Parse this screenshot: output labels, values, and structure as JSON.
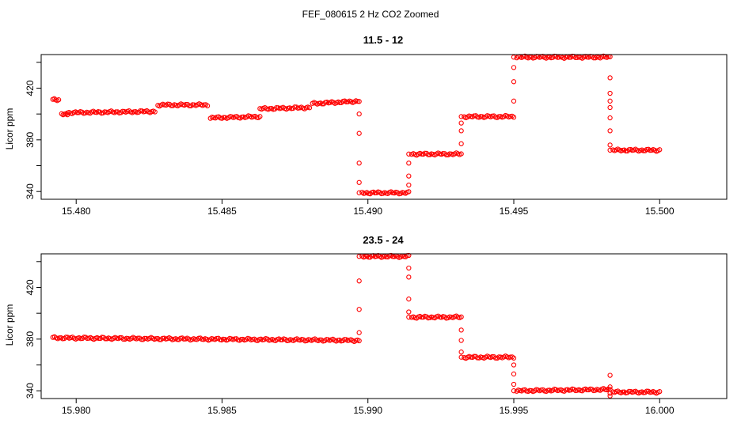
{
  "figure": {
    "title": "FEF_080615  2 Hz CO2 Zoomed"
  },
  "chart_data": [
    {
      "type": "scatter",
      "title": "11.5 - 12",
      "xlabel": "",
      "ylabel": "Licor ppm",
      "xlim": [
        15.4788,
        15.5023
      ],
      "ylim": [
        334,
        446
      ],
      "xticks": [
        15.48,
        15.485,
        15.49,
        15.495,
        15.5
      ],
      "xtick_labels": [
        "15.480",
        "15.485",
        "15.490",
        "15.495",
        "15.500"
      ],
      "yticks": [
        340,
        380,
        420
      ],
      "ytick_labels": [
        "340",
        "380",
        "420"
      ],
      "ytick_minor": [
        360,
        400,
        440
      ],
      "grid": false,
      "marker": "open-circle",
      "color": "#ff0000",
      "segments": [
        {
          "x": [
            15.4792,
            15.4794
          ],
          "y": [
            411,
            411
          ]
        },
        {
          "x": [
            15.4795,
            15.4797
          ],
          "y": [
            400,
            400
          ]
        },
        {
          "x": [
            15.4797,
            15.4827
          ],
          "y": [
            401,
            402
          ]
        },
        {
          "x": [
            15.4828,
            15.4845
          ],
          "y": [
            407,
            407
          ]
        },
        {
          "x": [
            15.4846,
            15.4863
          ],
          "y": [
            397,
            398
          ]
        },
        {
          "x": [
            15.4863,
            15.488
          ],
          "y": [
            404,
            405
          ]
        },
        {
          "x": [
            15.4881,
            15.4897
          ],
          "y": [
            408,
            410
          ]
        },
        {
          "x": [
            15.4898,
            15.4914
          ],
          "y": [
            339,
            339
          ]
        },
        {
          "x": [
            15.4915,
            15.4932
          ],
          "y": [
            369,
            369
          ]
        },
        {
          "x": [
            15.4933,
            15.495
          ],
          "y": [
            398,
            398
          ]
        },
        {
          "x": [
            15.4951,
            15.4983
          ],
          "y": [
            444,
            444
          ]
        },
        {
          "x": [
            15.4984,
            15.5
          ],
          "y": [
            372,
            372
          ]
        }
      ],
      "transitions": [
        {
          "x": 15.4897,
          "y": [
            400,
            385,
            362,
            347,
            339
          ]
        },
        {
          "x": 15.4914,
          "y": [
            345,
            352,
            362,
            369
          ]
        },
        {
          "x": 15.4932,
          "y": [
            377,
            387,
            393,
            398
          ]
        },
        {
          "x": 15.495,
          "y": [
            410,
            425,
            436,
            444
          ]
        },
        {
          "x": 15.4983,
          "y": [
            428,
            416,
            410,
            405,
            397,
            387,
            376,
            372
          ]
        }
      ]
    },
    {
      "type": "scatter",
      "title": "23.5 - 24",
      "xlabel": "",
      "ylabel": "Licor ppm",
      "xlim": [
        15.9788,
        16.0023
      ],
      "ylim": [
        334,
        446
      ],
      "xticks": [
        15.98,
        15.985,
        15.99,
        15.995,
        16.0
      ],
      "xtick_labels": [
        "15.980",
        "15.985",
        "15.990",
        "15.995",
        "16.000"
      ],
      "yticks": [
        340,
        380,
        420
      ],
      "ytick_labels": [
        "340",
        "380",
        "420"
      ],
      "ytick_minor": [
        360,
        400,
        440
      ],
      "grid": false,
      "marker": "open-circle",
      "color": "#ff0000",
      "segments": [
        {
          "x": [
            15.9792,
            15.9897
          ],
          "y": [
            381,
            379
          ]
        },
        {
          "x": [
            15.9898,
            15.9914
          ],
          "y": [
            444,
            444
          ]
        },
        {
          "x": [
            15.9915,
            15.9932
          ],
          "y": [
            397,
            397
          ]
        },
        {
          "x": [
            15.9933,
            15.995
          ],
          "y": [
            366,
            366
          ]
        },
        {
          "x": [
            15.9951,
            15.9983
          ],
          "y": [
            340,
            341
          ]
        },
        {
          "x": [
            15.9984,
            16.0
          ],
          "y": [
            339,
            339
          ]
        }
      ],
      "transitions": [
        {
          "x": 15.9897,
          "y": [
            385,
            403,
            425,
            444
          ]
        },
        {
          "x": 15.9914,
          "y": [
            435,
            428,
            411,
            401,
            397
          ]
        },
        {
          "x": 15.9932,
          "y": [
            387,
            379,
            370,
            366
          ]
        },
        {
          "x": 15.995,
          "y": [
            360,
            353,
            345,
            340
          ]
        },
        {
          "x": 15.9983,
          "y": [
            352,
            336,
            343,
            338
          ]
        }
      ]
    }
  ]
}
